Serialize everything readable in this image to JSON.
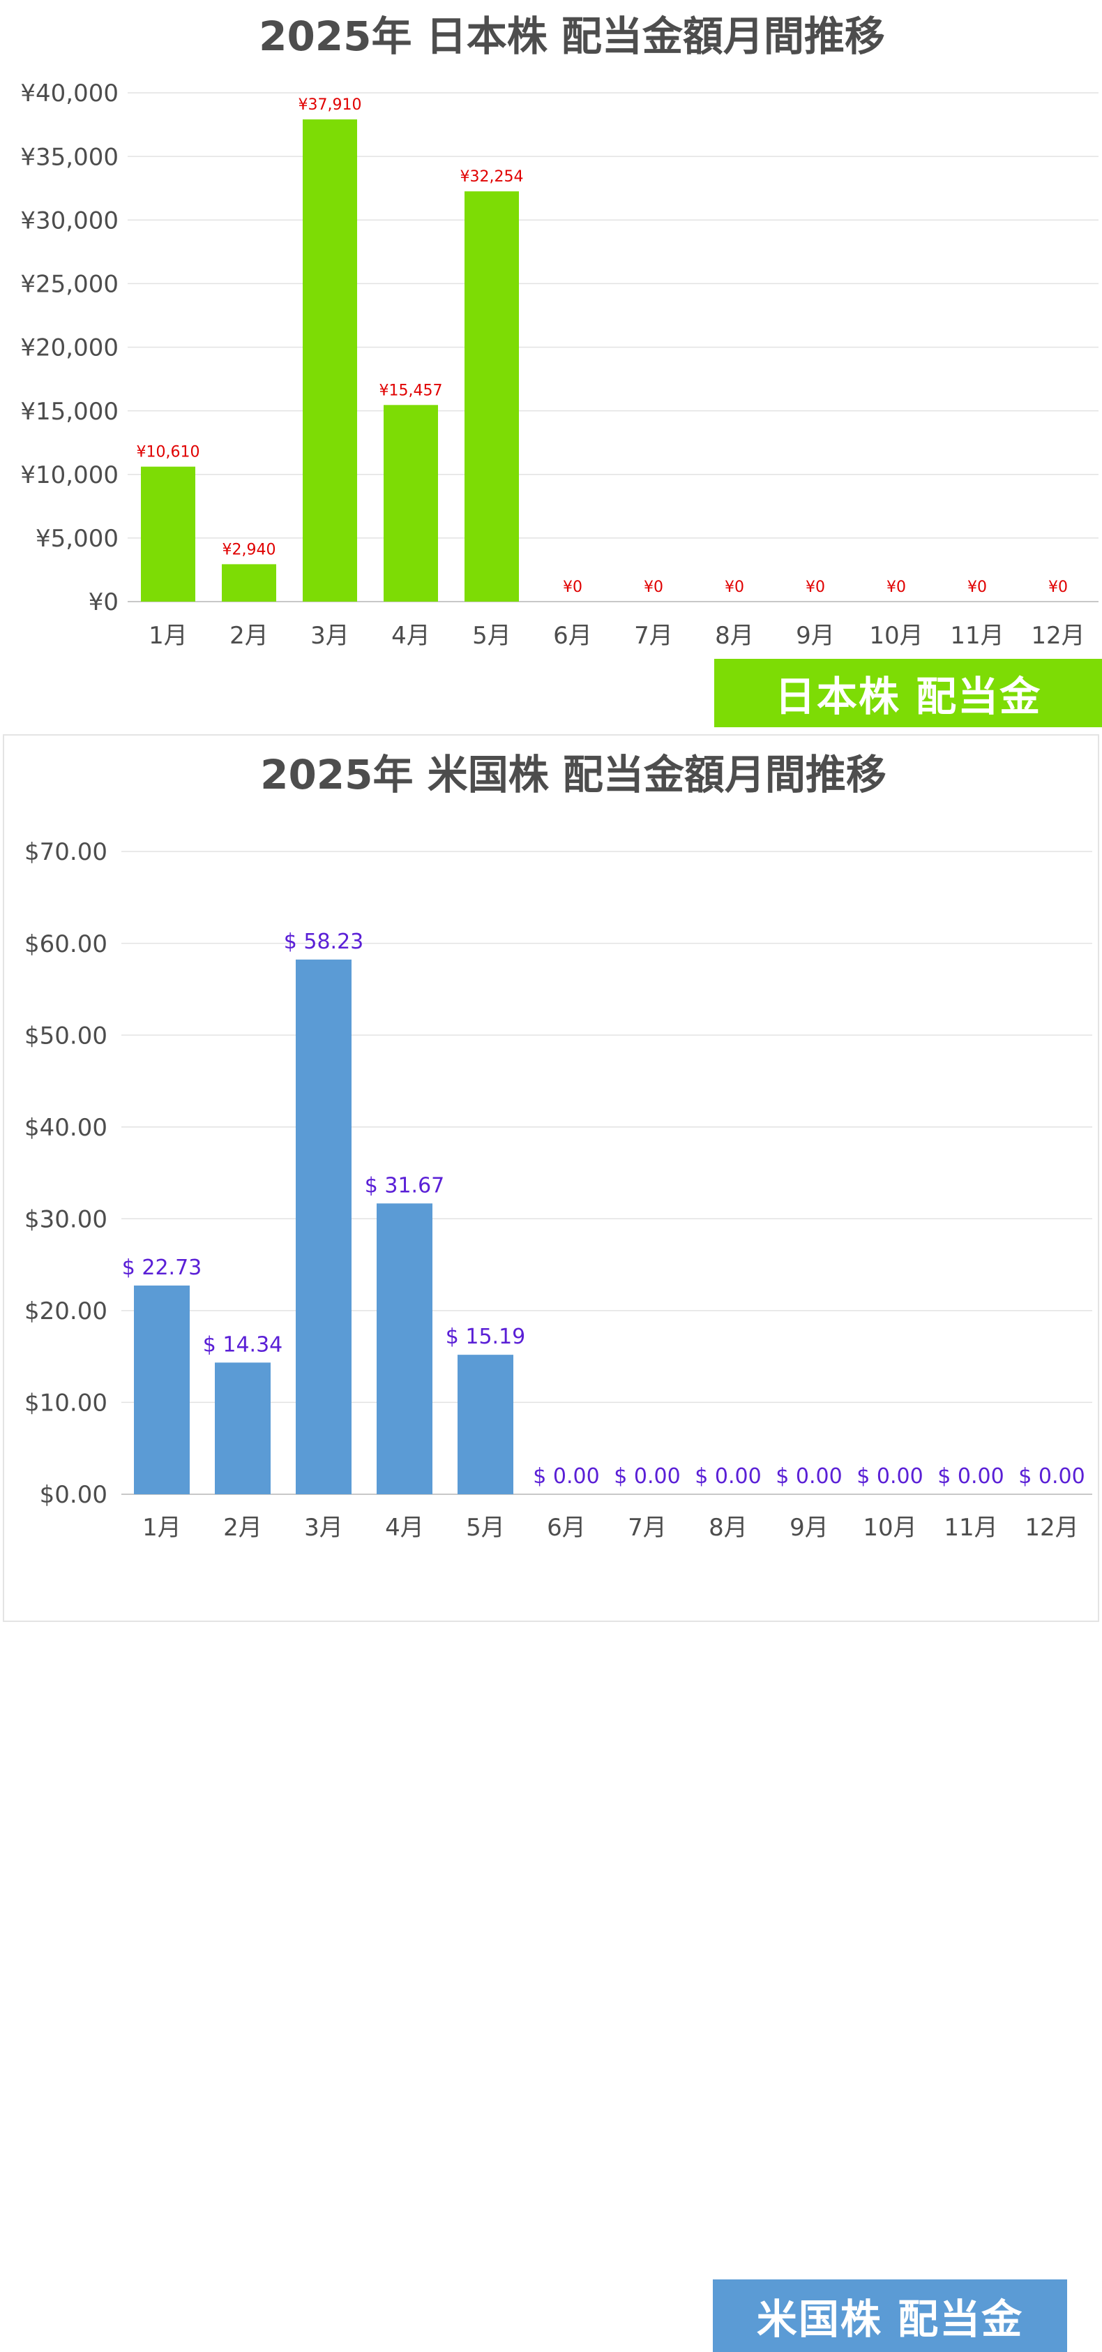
{
  "charts": {
    "jp": {
      "badge_label": "日本株 配当金",
      "bar_color": "#7ddc05",
      "label_color": "#e00000",
      "badge_color": "#7ddc05"
    },
    "us": {
      "badge_label": "米国株 配当金",
      "bar_color": "#5b9bd5",
      "label_color": "#5a1fd6",
      "badge_color": "#5b9bd5"
    }
  },
  "chart_data": [
    {
      "type": "bar",
      "title": "2025年 日本株 配当金額月間推移",
      "categories": [
        "1月",
        "2月",
        "3月",
        "4月",
        "5月",
        "6月",
        "7月",
        "8月",
        "9月",
        "10月",
        "11月",
        "12月"
      ],
      "values": [
        10610,
        2940,
        37910,
        15457,
        32254,
        0,
        0,
        0,
        0,
        0,
        0,
        0
      ],
      "data_labels": [
        "¥10,610",
        "¥2,940",
        "¥37,910",
        "¥15,457",
        "¥32,254",
        "¥0",
        "¥0",
        "¥0",
        "¥0",
        "¥0",
        "¥0",
        "¥0"
      ],
      "ylim": [
        0,
        40000
      ],
      "yticks": [
        0,
        5000,
        10000,
        15000,
        20000,
        25000,
        30000,
        35000,
        40000
      ],
      "ytick_labels": [
        "¥0",
        "¥5,000",
        "¥10,000",
        "¥15,000",
        "¥20,000",
        "¥25,000",
        "¥30,000",
        "¥35,000",
        "¥40,000"
      ],
      "grid": true
    },
    {
      "type": "bar",
      "title": "2025年 米国株 配当金額月間推移",
      "categories": [
        "1月",
        "2月",
        "3月",
        "4月",
        "5月",
        "6月",
        "7月",
        "8月",
        "9月",
        "10月",
        "11月",
        "12月"
      ],
      "values": [
        22.73,
        14.34,
        58.23,
        31.67,
        15.19,
        0,
        0,
        0,
        0,
        0,
        0,
        0
      ],
      "data_labels": [
        "$ 22.73",
        "$ 14.34",
        "$ 58.23",
        "$ 31.67",
        "$ 15.19",
        "$ 0.00",
        "$ 0.00",
        "$ 0.00",
        "$ 0.00",
        "$ 0.00",
        "$ 0.00",
        "$ 0.00"
      ],
      "ylim": [
        0,
        70
      ],
      "yticks": [
        0,
        10,
        20,
        30,
        40,
        50,
        60,
        70
      ],
      "ytick_labels": [
        "$0.00",
        "$10.00",
        "$20.00",
        "$30.00",
        "$40.00",
        "$50.00",
        "$60.00",
        "$70.00"
      ],
      "grid": true
    }
  ]
}
